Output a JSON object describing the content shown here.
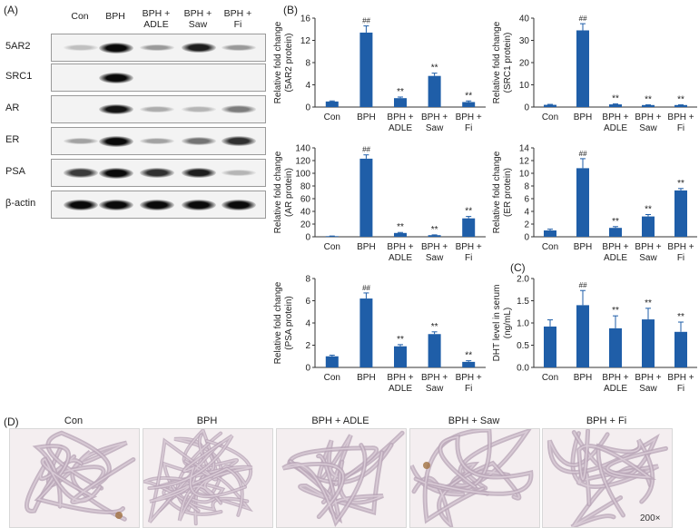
{
  "figure": {
    "panel_a_label": "(A)",
    "panel_b_label": "(B)",
    "panel_c_label": "(C)",
    "panel_d_label": "(D)",
    "western_blot": {
      "columns": [
        "Con",
        "BPH",
        "BPH +\nADLE",
        "BPH +\nSaw",
        "BPH +\nFi"
      ],
      "rows": [
        "5AR2",
        "SRC1",
        "AR",
        "ER",
        "PSA",
        "β-actin"
      ]
    },
    "histology": {
      "labels": [
        "Con",
        "BPH",
        "BPH + ADLE",
        "BPH + Saw",
        "BPH + Fi"
      ],
      "magnification": "200×"
    },
    "colors": {
      "bar": "#1f5ea8",
      "axis": "#333333",
      "text": "#222222"
    }
  },
  "chart_data": [
    {
      "type": "bar",
      "ylabel": [
        "Relative fold change",
        "(5AR2 protein)"
      ],
      "categories": [
        "Con",
        "BPH",
        "BPH +\nADLE",
        "BPH +\nSaw",
        "BPH +\nFi"
      ],
      "values": [
        1.0,
        13.4,
        1.6,
        5.6,
        0.9
      ],
      "errors": [
        0.1,
        1.2,
        0.2,
        0.5,
        0.2
      ],
      "annotations": [
        "",
        "##",
        "**",
        "**",
        "**"
      ],
      "ylim": [
        0,
        16
      ],
      "yticks": [
        0,
        4,
        8,
        12,
        16
      ]
    },
    {
      "type": "bar",
      "ylabel": [
        "Relative fold change",
        "(SRC1 protein)"
      ],
      "categories": [
        "Con",
        "BPH",
        "BPH +\nADLE",
        "BPH +\nSaw",
        "BPH +\nFi"
      ],
      "values": [
        1.0,
        34.5,
        1.2,
        0.9,
        0.9
      ],
      "errors": [
        0.2,
        3.0,
        0.2,
        0.1,
        0.1
      ],
      "annotations": [
        "",
        "##",
        "**",
        "**",
        "**"
      ],
      "ylim": [
        0,
        40
      ],
      "yticks": [
        0,
        10,
        20,
        30,
        40
      ]
    },
    {
      "type": "bar",
      "ylabel": [
        "Relative fold change",
        "(AR protein)"
      ],
      "categories": [
        "Con",
        "BPH",
        "BPH +\nADLE",
        "BPH +\nSaw",
        "BPH +\nFi"
      ],
      "values": [
        1.0,
        123,
        6.0,
        2.5,
        29
      ],
      "errors": [
        0.2,
        6.0,
        0.8,
        0.5,
        3.0
      ],
      "annotations": [
        "",
        "##",
        "**",
        "**",
        "**"
      ],
      "ylim": [
        0,
        140
      ],
      "yticks": [
        0,
        20,
        40,
        60,
        80,
        100,
        120,
        140
      ]
    },
    {
      "type": "bar",
      "ylabel": [
        "Relative fold change",
        "(ER protein)"
      ],
      "categories": [
        "Con",
        "BPH",
        "BPH +\nADLE",
        "BPH +\nSaw",
        "BPH +\nFi"
      ],
      "values": [
        1.0,
        10.8,
        1.4,
        3.2,
        7.3
      ],
      "errors": [
        0.2,
        1.5,
        0.2,
        0.3,
        0.3
      ],
      "annotations": [
        "",
        "##",
        "**",
        "**",
        "**"
      ],
      "ylim": [
        0,
        14
      ],
      "yticks": [
        0,
        2,
        4,
        6,
        8,
        10,
        12,
        14
      ]
    },
    {
      "type": "bar",
      "ylabel": [
        "Relative fold change",
        "(PSA protein)"
      ],
      "categories": [
        "Con",
        "BPH",
        "BPH +\nADLE",
        "BPH +\nSaw",
        "BPH +\nFi"
      ],
      "values": [
        1.0,
        6.2,
        1.9,
        3.0,
        0.5
      ],
      "errors": [
        0.1,
        0.5,
        0.15,
        0.2,
        0.1
      ],
      "annotations": [
        "",
        "##",
        "**",
        "**",
        "**"
      ],
      "ylim": [
        0,
        8
      ],
      "yticks": [
        0,
        2,
        4,
        6,
        8
      ]
    },
    {
      "type": "bar",
      "ylabel": [
        "DHT level in serum",
        "(ng/mL)"
      ],
      "categories": [
        "Con",
        "BPH",
        "BPH +\nADLE",
        "BPH +\nSaw",
        "BPH +\nFi"
      ],
      "values": [
        0.92,
        1.4,
        0.88,
        1.08,
        0.8
      ],
      "errors": [
        0.15,
        0.33,
        0.28,
        0.25,
        0.22
      ],
      "annotations": [
        "",
        "##",
        "**",
        "**",
        "**"
      ],
      "ylim": [
        0,
        2.0
      ],
      "yticks": [
        0,
        0.5,
        1.0,
        1.5,
        2.0
      ],
      "tickDecimals": 1
    }
  ]
}
